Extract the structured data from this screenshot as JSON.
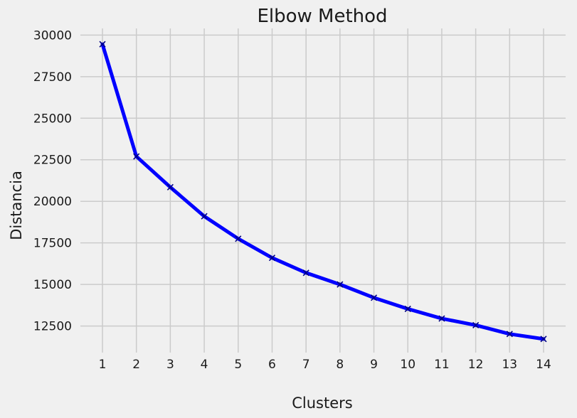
{
  "chart_data": {
    "type": "line",
    "title": "Elbow Method",
    "xlabel": "Clusters",
    "ylabel": "Distancia",
    "x": [
      1,
      2,
      3,
      4,
      5,
      6,
      7,
      8,
      9,
      10,
      11,
      12,
      13,
      14
    ],
    "xticks": [
      "1",
      "2",
      "3",
      "4",
      "5",
      "6",
      "7",
      "8",
      "9",
      "10",
      "11",
      "12",
      "13",
      "14"
    ],
    "yticks": [
      12500,
      15000,
      17500,
      20000,
      22500,
      25000,
      27500,
      30000
    ],
    "ylim": [
      10900,
      30400
    ],
    "xlim": [
      0.35,
      14.65
    ],
    "grid": true,
    "series": [
      {
        "values": [
          29450,
          22700,
          20850,
          19100,
          17750,
          16600,
          15700,
          15000,
          14200,
          13530,
          12950,
          12550,
          12020,
          11720
        ],
        "color": "#0000ff",
        "marker": "x"
      }
    ],
    "colors": {
      "background": "#f0f0f0",
      "grid": "#cbcbcb",
      "line": "#0000ff"
    }
  }
}
